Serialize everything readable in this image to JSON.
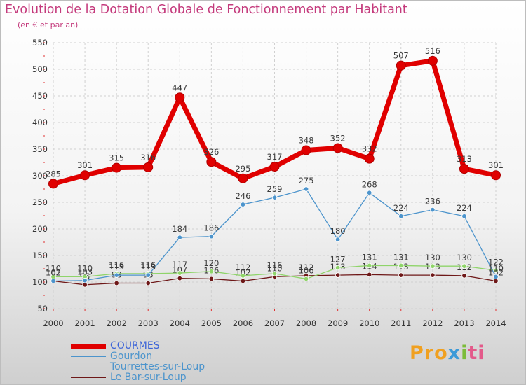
{
  "title": "Evolution de la Dotation Globale de Fonctionnement par Habitant",
  "subtitle": "(en € et par an)",
  "logo": {
    "p1": "Pro",
    "p2": "x",
    "p3": "i",
    "p4": "ti"
  },
  "chart_data": {
    "type": "line",
    "title": "Evolution de la Dotation Globale de Fonctionnement par Habitant",
    "ylabel": "(en € et par an)",
    "x": [
      "2000",
      "2001",
      "2002",
      "2003",
      "2004",
      "2005",
      "2006",
      "2007",
      "2008",
      "2009",
      "2010",
      "2011",
      "2012",
      "2013",
      "2014"
    ],
    "yticks": [
      50,
      100,
      150,
      200,
      250,
      300,
      350,
      400,
      450,
      500,
      550
    ],
    "ylim": [
      50,
      550
    ],
    "series": [
      {
        "name": "COURMES",
        "color": "#e00000",
        "values": [
          285,
          301,
          315,
          316,
          447,
          326,
          295,
          317,
          348,
          352,
          332,
          507,
          516,
          313,
          301
        ]
      },
      {
        "name": "Gourdon",
        "color": "#4c94cc",
        "values": [
          102,
          103,
          113,
          113,
          184,
          186,
          246,
          259,
          275,
          180,
          268,
          224,
          236,
          224,
          110
        ]
      },
      {
        "name": "Tourrettes-sur-Loup",
        "color": "#8fd46a",
        "values": [
          110,
          110,
          116,
          116,
          117,
          120,
          112,
          116,
          106,
          127,
          131,
          131,
          130,
          130,
          122
        ]
      },
      {
        "name": "Le Bar-sur-Loup",
        "color": "#6e1818",
        "values": [
          102,
          95,
          98,
          98,
          107,
          106,
          102,
          110,
          112,
          113,
          114,
          113,
          113,
          112,
          102
        ]
      }
    ],
    "legend": [
      "COURMES",
      "Gourdon",
      "Tourrettes-sur-Loup",
      "Le Bar-sur-Loup"
    ]
  }
}
